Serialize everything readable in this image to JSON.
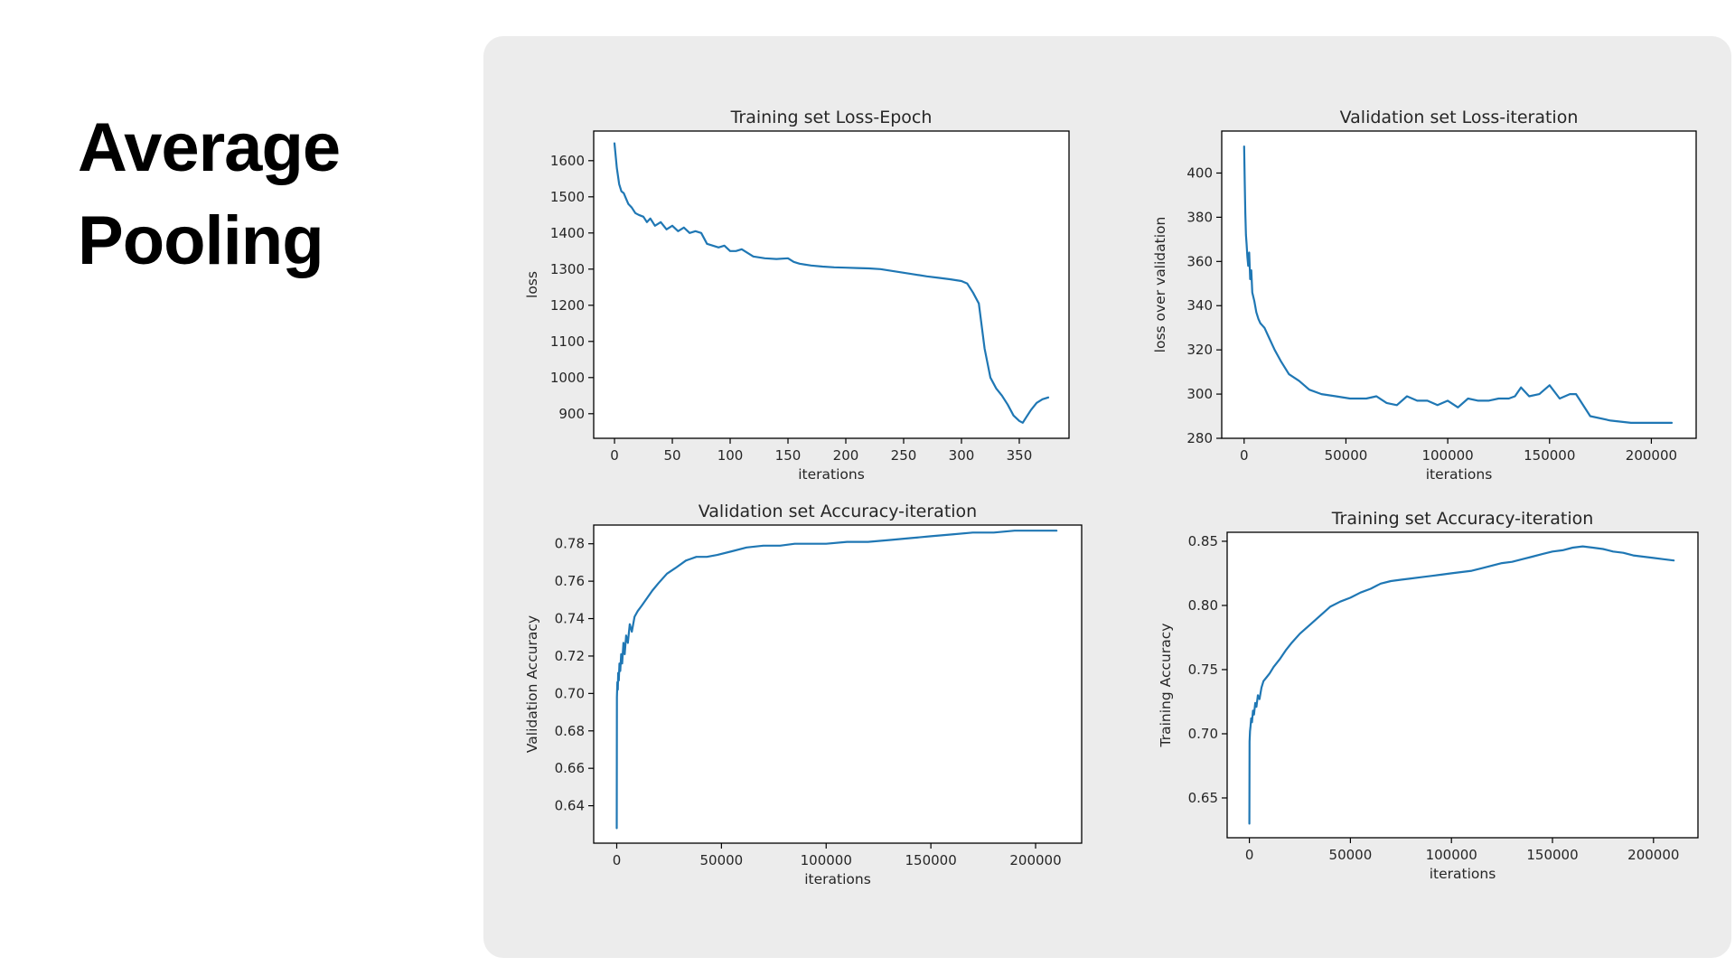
{
  "slide": {
    "title_line1": "Average",
    "title_line2": "Pooling"
  },
  "colors": {
    "series": "#1f77b4",
    "panel": "#ececec",
    "plot_bg": "#ffffff",
    "axis": "#000000"
  },
  "chart_data": [
    {
      "id": "train_loss",
      "type": "line",
      "title": "Training set Loss-Epoch",
      "xlabel": "iterations",
      "ylabel": "loss",
      "xlim": [
        -18,
        393
      ],
      "ylim": [
        832,
        1682
      ],
      "xticks": [
        0,
        50,
        100,
        150,
        200,
        250,
        300,
        350
      ],
      "yticks": [
        900,
        1000,
        1100,
        1200,
        1300,
        1400,
        1500,
        1600
      ],
      "x": [
        0,
        2,
        4,
        6,
        8,
        10,
        12,
        15,
        18,
        21,
        25,
        28,
        31,
        35,
        40,
        45,
        50,
        55,
        60,
        65,
        70,
        75,
        80,
        85,
        90,
        95,
        100,
        105,
        110,
        115,
        120,
        130,
        140,
        150,
        155,
        160,
        170,
        180,
        190,
        200,
        210,
        220,
        230,
        240,
        250,
        260,
        270,
        280,
        290,
        300,
        305,
        310,
        315,
        320,
        325,
        330,
        335,
        340,
        345,
        350,
        353,
        356,
        360,
        365,
        370,
        375
      ],
      "y": [
        1648,
        1580,
        1535,
        1515,
        1510,
        1495,
        1480,
        1470,
        1455,
        1450,
        1445,
        1430,
        1440,
        1420,
        1430,
        1410,
        1420,
        1405,
        1415,
        1400,
        1405,
        1400,
        1370,
        1365,
        1360,
        1365,
        1350,
        1350,
        1355,
        1345,
        1335,
        1330,
        1328,
        1330,
        1320,
        1315,
        1310,
        1307,
        1305,
        1304,
        1303,
        1302,
        1300,
        1295,
        1290,
        1285,
        1280,
        1276,
        1272,
        1267,
        1260,
        1235,
        1205,
        1080,
        1000,
        970,
        950,
        925,
        895,
        880,
        875,
        890,
        910,
        930,
        940,
        945
      ],
      "series_name": "loss"
    },
    {
      "id": "val_loss",
      "type": "line",
      "title": "Validation set Loss-iteration",
      "xlabel": "iterations",
      "ylabel": "loss over validation",
      "xlim": [
        -11000,
        222000
      ],
      "ylim": [
        280,
        419
      ],
      "xticks": [
        0,
        50000,
        100000,
        150000,
        200000
      ],
      "yticks": [
        280,
        300,
        320,
        340,
        360,
        380,
        400
      ],
      "x": [
        0,
        300,
        600,
        900,
        1200,
        1600,
        2000,
        2500,
        3000,
        3500,
        4000,
        5000,
        6000,
        7000,
        8000,
        10000,
        12000,
        15000,
        18000,
        22000,
        27000,
        32000,
        38000,
        45000,
        52000,
        60000,
        65000,
        70000,
        75000,
        80000,
        85000,
        90000,
        95000,
        100000,
        105000,
        110000,
        115000,
        120000,
        125000,
        130000,
        133000,
        136000,
        140000,
        145000,
        150000,
        155000,
        160000,
        163000,
        170000,
        180000,
        190000,
        200000,
        205000,
        210000
      ],
      "y": [
        412,
        395,
        382,
        372,
        368,
        362,
        358,
        364,
        352,
        356,
        346,
        342,
        337,
        334,
        332,
        330,
        326,
        320,
        315,
        309,
        306,
        302,
        300,
        299,
        298,
        298,
        299,
        296,
        295,
        299,
        297,
        297,
        295,
        297,
        294,
        298,
        297,
        297,
        298,
        298,
        299,
        303,
        299,
        300,
        304,
        298,
        300,
        300,
        290,
        288,
        287,
        287,
        287,
        287
      ],
      "series_name": "loss over validation"
    },
    {
      "id": "val_acc",
      "type": "line",
      "title": "Validation set Accuracy-iteration",
      "xlabel": "iterations",
      "ylabel": "Validation Accuracy",
      "xlim": [
        -11000,
        222000
      ],
      "ylim": [
        0.62,
        0.79
      ],
      "xticks": [
        0,
        50000,
        100000,
        150000,
        200000
      ],
      "yticks": [
        0.64,
        0.66,
        0.68,
        0.7,
        0.72,
        0.74,
        0.76,
        0.78
      ],
      "x": [
        0,
        100,
        300,
        500,
        700,
        1000,
        1300,
        1700,
        2100,
        2600,
        3200,
        3800,
        4500,
        5300,
        6200,
        7200,
        8500,
        10000,
        12000,
        14500,
        17000,
        20000,
        24000,
        28000,
        33000,
        38000,
        43000,
        48000,
        55000,
        62000,
        70000,
        78000,
        85000,
        92000,
        100000,
        110000,
        120000,
        130000,
        140000,
        150000,
        160000,
        170000,
        180000,
        190000,
        200000,
        210000
      ],
      "y": [
        0.628,
        0.698,
        0.706,
        0.702,
        0.711,
        0.707,
        0.716,
        0.712,
        0.721,
        0.716,
        0.727,
        0.721,
        0.731,
        0.727,
        0.737,
        0.733,
        0.741,
        0.744,
        0.747,
        0.751,
        0.755,
        0.759,
        0.764,
        0.767,
        0.771,
        0.773,
        0.773,
        0.774,
        0.776,
        0.778,
        0.779,
        0.779,
        0.78,
        0.78,
        0.78,
        0.781,
        0.781,
        0.782,
        0.783,
        0.784,
        0.785,
        0.786,
        0.786,
        0.787,
        0.787,
        0.787
      ],
      "series_name": "Validation Accuracy"
    },
    {
      "id": "train_acc",
      "type": "line",
      "title": "Training set Accuracy-iteration",
      "xlabel": "iterations",
      "ylabel": "Training Accuracy",
      "xlim": [
        -11000,
        222000
      ],
      "ylim": [
        0.619,
        0.857
      ],
      "xticks": [
        0,
        50000,
        100000,
        150000,
        200000
      ],
      "yticks": [
        0.65,
        0.7,
        0.75,
        0.8,
        0.85
      ],
      "x": [
        0,
        100,
        300,
        600,
        900,
        1300,
        1800,
        2300,
        2900,
        3500,
        4200,
        5000,
        6000,
        7000,
        8500,
        10000,
        12000,
        15000,
        18000,
        21000,
        25000,
        30000,
        35000,
        40000,
        45000,
        50000,
        55000,
        60000,
        65000,
        70000,
        75000,
        80000,
        85000,
        90000,
        95000,
        100000,
        105000,
        110000,
        115000,
        120000,
        125000,
        130000,
        135000,
        140000,
        145000,
        150000,
        155000,
        160000,
        165000,
        170000,
        175000,
        180000,
        185000,
        190000,
        195000,
        200000,
        205000,
        210000
      ],
      "y": [
        0.63,
        0.694,
        0.702,
        0.706,
        0.712,
        0.709,
        0.718,
        0.715,
        0.724,
        0.721,
        0.73,
        0.727,
        0.736,
        0.741,
        0.744,
        0.747,
        0.752,
        0.758,
        0.765,
        0.771,
        0.778,
        0.785,
        0.792,
        0.799,
        0.803,
        0.806,
        0.81,
        0.813,
        0.817,
        0.819,
        0.82,
        0.821,
        0.822,
        0.823,
        0.824,
        0.825,
        0.826,
        0.827,
        0.829,
        0.831,
        0.833,
        0.834,
        0.836,
        0.838,
        0.84,
        0.842,
        0.843,
        0.845,
        0.846,
        0.845,
        0.844,
        0.842,
        0.841,
        0.839,
        0.838,
        0.837,
        0.836,
        0.835
      ],
      "series_name": "Training Accuracy"
    }
  ]
}
